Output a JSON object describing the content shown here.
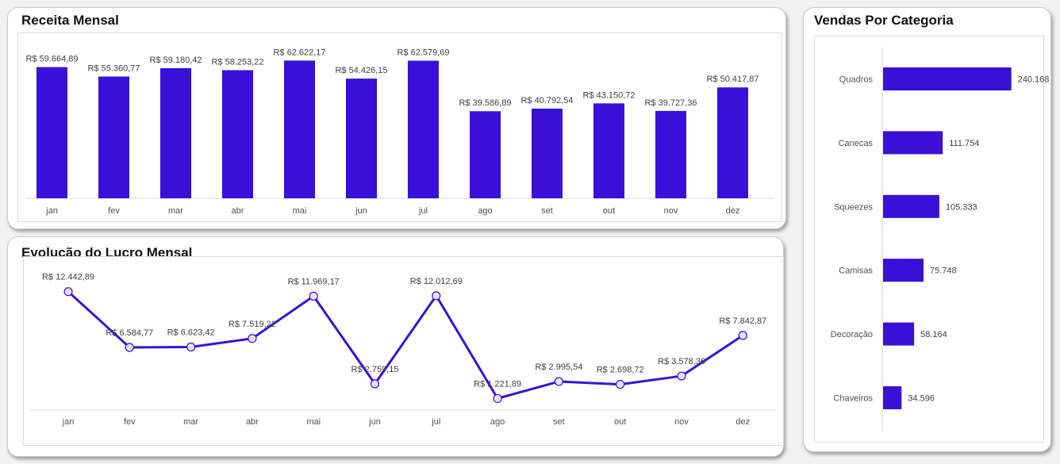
{
  "colors": {
    "bar": "#3a10d8",
    "line": "#3a10d8",
    "marker_fill": "#e8e4ff"
  },
  "receita": {
    "title": "Receita Mensal",
    "chart_data": {
      "type": "bar",
      "title": "Receita Mensal",
      "categories": [
        "jan",
        "fev",
        "mar",
        "abr",
        "mai",
        "jun",
        "jul",
        "ago",
        "set",
        "out",
        "nov",
        "dez"
      ],
      "values": [
        59664.89,
        55360.77,
        59180.42,
        58253.22,
        62622.17,
        54426.15,
        62579.69,
        39586.89,
        40792.54,
        43150.72,
        39727.36,
        50417.87
      ],
      "labels": [
        "R$ 59.664,89",
        "R$ 55.360,77",
        "R$ 59.180,42",
        "R$ 58.253,22",
        "R$ 62.622,17",
        "R$ 54.426,15",
        "R$ 62.579,69",
        "R$ 39.586,89",
        "R$ 40.792,54",
        "R$ 43.150,72",
        "R$ 39.727,36",
        "R$ 50.417,87"
      ],
      "ylim": [
        0,
        66000
      ]
    }
  },
  "lucro": {
    "title": "Evolução do Lucro Mensal",
    "chart_data": {
      "type": "line",
      "title": "Evolução do Lucro Mensal",
      "categories": [
        "jan",
        "fev",
        "mar",
        "abr",
        "mai",
        "jun",
        "jul",
        "ago",
        "set",
        "out",
        "nov",
        "dez"
      ],
      "values": [
        12442.89,
        6584.77,
        6623.42,
        7519.22,
        11969.17,
        2759.15,
        12012.69,
        1221.89,
        2995.54,
        2698.72,
        3578.36,
        7842.87
      ],
      "labels": [
        "R$ 12.442,89",
        "R$ 6.584,77",
        "R$ 6.623,42",
        "R$ 7.519,22",
        "R$ 11.969,17",
        "R$ 2.759,15",
        "R$ 12.012,69",
        "R$ 1.221,89",
        "R$ 2.995,54",
        "R$ 2.698,72",
        "R$ 3.578,36",
        "R$ 7.842,87"
      ],
      "ylim": [
        0,
        14000
      ]
    }
  },
  "categoria": {
    "title": "Vendas Por Categoria",
    "chart_data": {
      "type": "bar",
      "orientation": "horizontal",
      "title": "Vendas Por Categoria",
      "categories": [
        "Quadros",
        "Canecas",
        "Squeezes",
        "Camisas",
        "Decoração",
        "Chaveiros"
      ],
      "values": [
        240168,
        111754,
        105333,
        75748,
        58164,
        34596
      ],
      "labels": [
        "240.168",
        "111.754",
        "105.333",
        "75.748",
        "58.164",
        "34.596"
      ],
      "xlim": [
        0,
        260000
      ]
    }
  }
}
